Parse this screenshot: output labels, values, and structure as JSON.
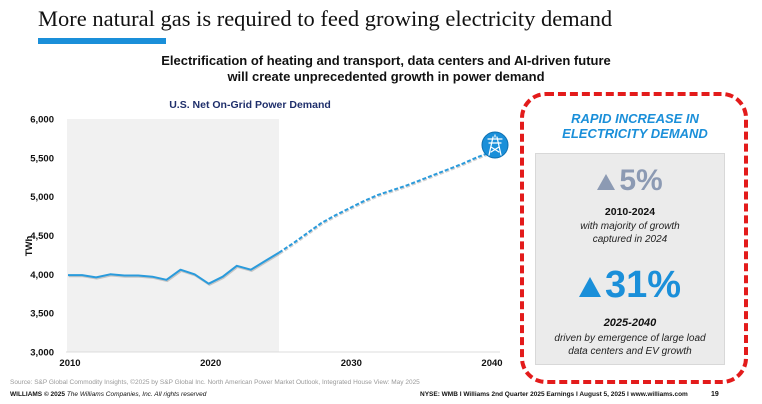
{
  "slide": {
    "title": "More natural gas is required to feed growing electricity demand",
    "subtitle_line1": "Electrification of heating and transport, data centers and AI-driven future",
    "subtitle_line2": "will create unprecedented growth in power demand"
  },
  "callout": {
    "title_line1": "RAPID INCREASE IN",
    "title_line2": "ELECTRICITY DEMAND",
    "stats": [
      {
        "direction": "up",
        "value": "5%",
        "range": "2010-2024",
        "desc_line1": "with majority of growth",
        "desc_line2": "captured in 2024",
        "color": "#8c9ab3"
      },
      {
        "direction": "up",
        "value": "31%",
        "range": "2025-2040",
        "desc_line1": "driven by emergence of large load",
        "desc_line2": "data centers and EV growth",
        "color": "#1a8fd9"
      }
    ]
  },
  "footer": {
    "source": "Source: S&P Global Commodity Insights, ©2025 by S&P Global Inc. North American Power Market Outlook, Integrated House View: May 2025",
    "brand": "WILLIAMS",
    "copyright": "© 2025",
    "company": "The Williams Companies, Inc. All rights reserved",
    "right": "NYSE: WMB  I  Williams 2nd Quarter 2025 Earnings I  August 5, 2025  I  www.williams.com",
    "page": "19"
  },
  "colors": {
    "accent": "#1a8fd9",
    "callout_border": "#e31b1b",
    "historical_shade": "#f1f1f1",
    "chart_title": "#1f2f6b"
  },
  "chart_data": {
    "type": "line",
    "title": "U.S. Net On-Grid Power Demand",
    "xlabel": "",
    "ylabel": "TWh",
    "xlim": [
      2010,
      2040
    ],
    "ylim": [
      3000,
      6000
    ],
    "x_ticks": [
      "2010",
      "2020",
      "2030",
      "2040"
    ],
    "y_ticks": [
      "3,000",
      "3,500",
      "4,000",
      "4,500",
      "5,000",
      "5,500",
      "6,000"
    ],
    "grid": false,
    "shaded_region": {
      "label": "historical",
      "x_range": [
        2010,
        2025
      ]
    },
    "end_marker_icon": "transmission-tower-icon",
    "series": [
      {
        "name": "Historical",
        "style": "solid",
        "x": [
          2010,
          2011,
          2012,
          2013,
          2014,
          2015,
          2016,
          2017,
          2018,
          2019,
          2020,
          2021,
          2022,
          2023,
          2024,
          2025
        ],
        "values": [
          3990,
          3990,
          3960,
          4000,
          3985,
          3985,
          3970,
          3930,
          4060,
          4000,
          3880,
          3970,
          4110,
          4060,
          4170,
          4280
        ]
      },
      {
        "name": "Forecast",
        "style": "dashed",
        "x": [
          2025,
          2026,
          2027,
          2028,
          2029,
          2030,
          2031,
          2032,
          2033,
          2034,
          2035,
          2036,
          2037,
          2038,
          2039,
          2040
        ],
        "values": [
          4280,
          4400,
          4530,
          4660,
          4760,
          4850,
          4940,
          5020,
          5080,
          5140,
          5210,
          5280,
          5350,
          5420,
          5500,
          5570
        ]
      }
    ]
  }
}
